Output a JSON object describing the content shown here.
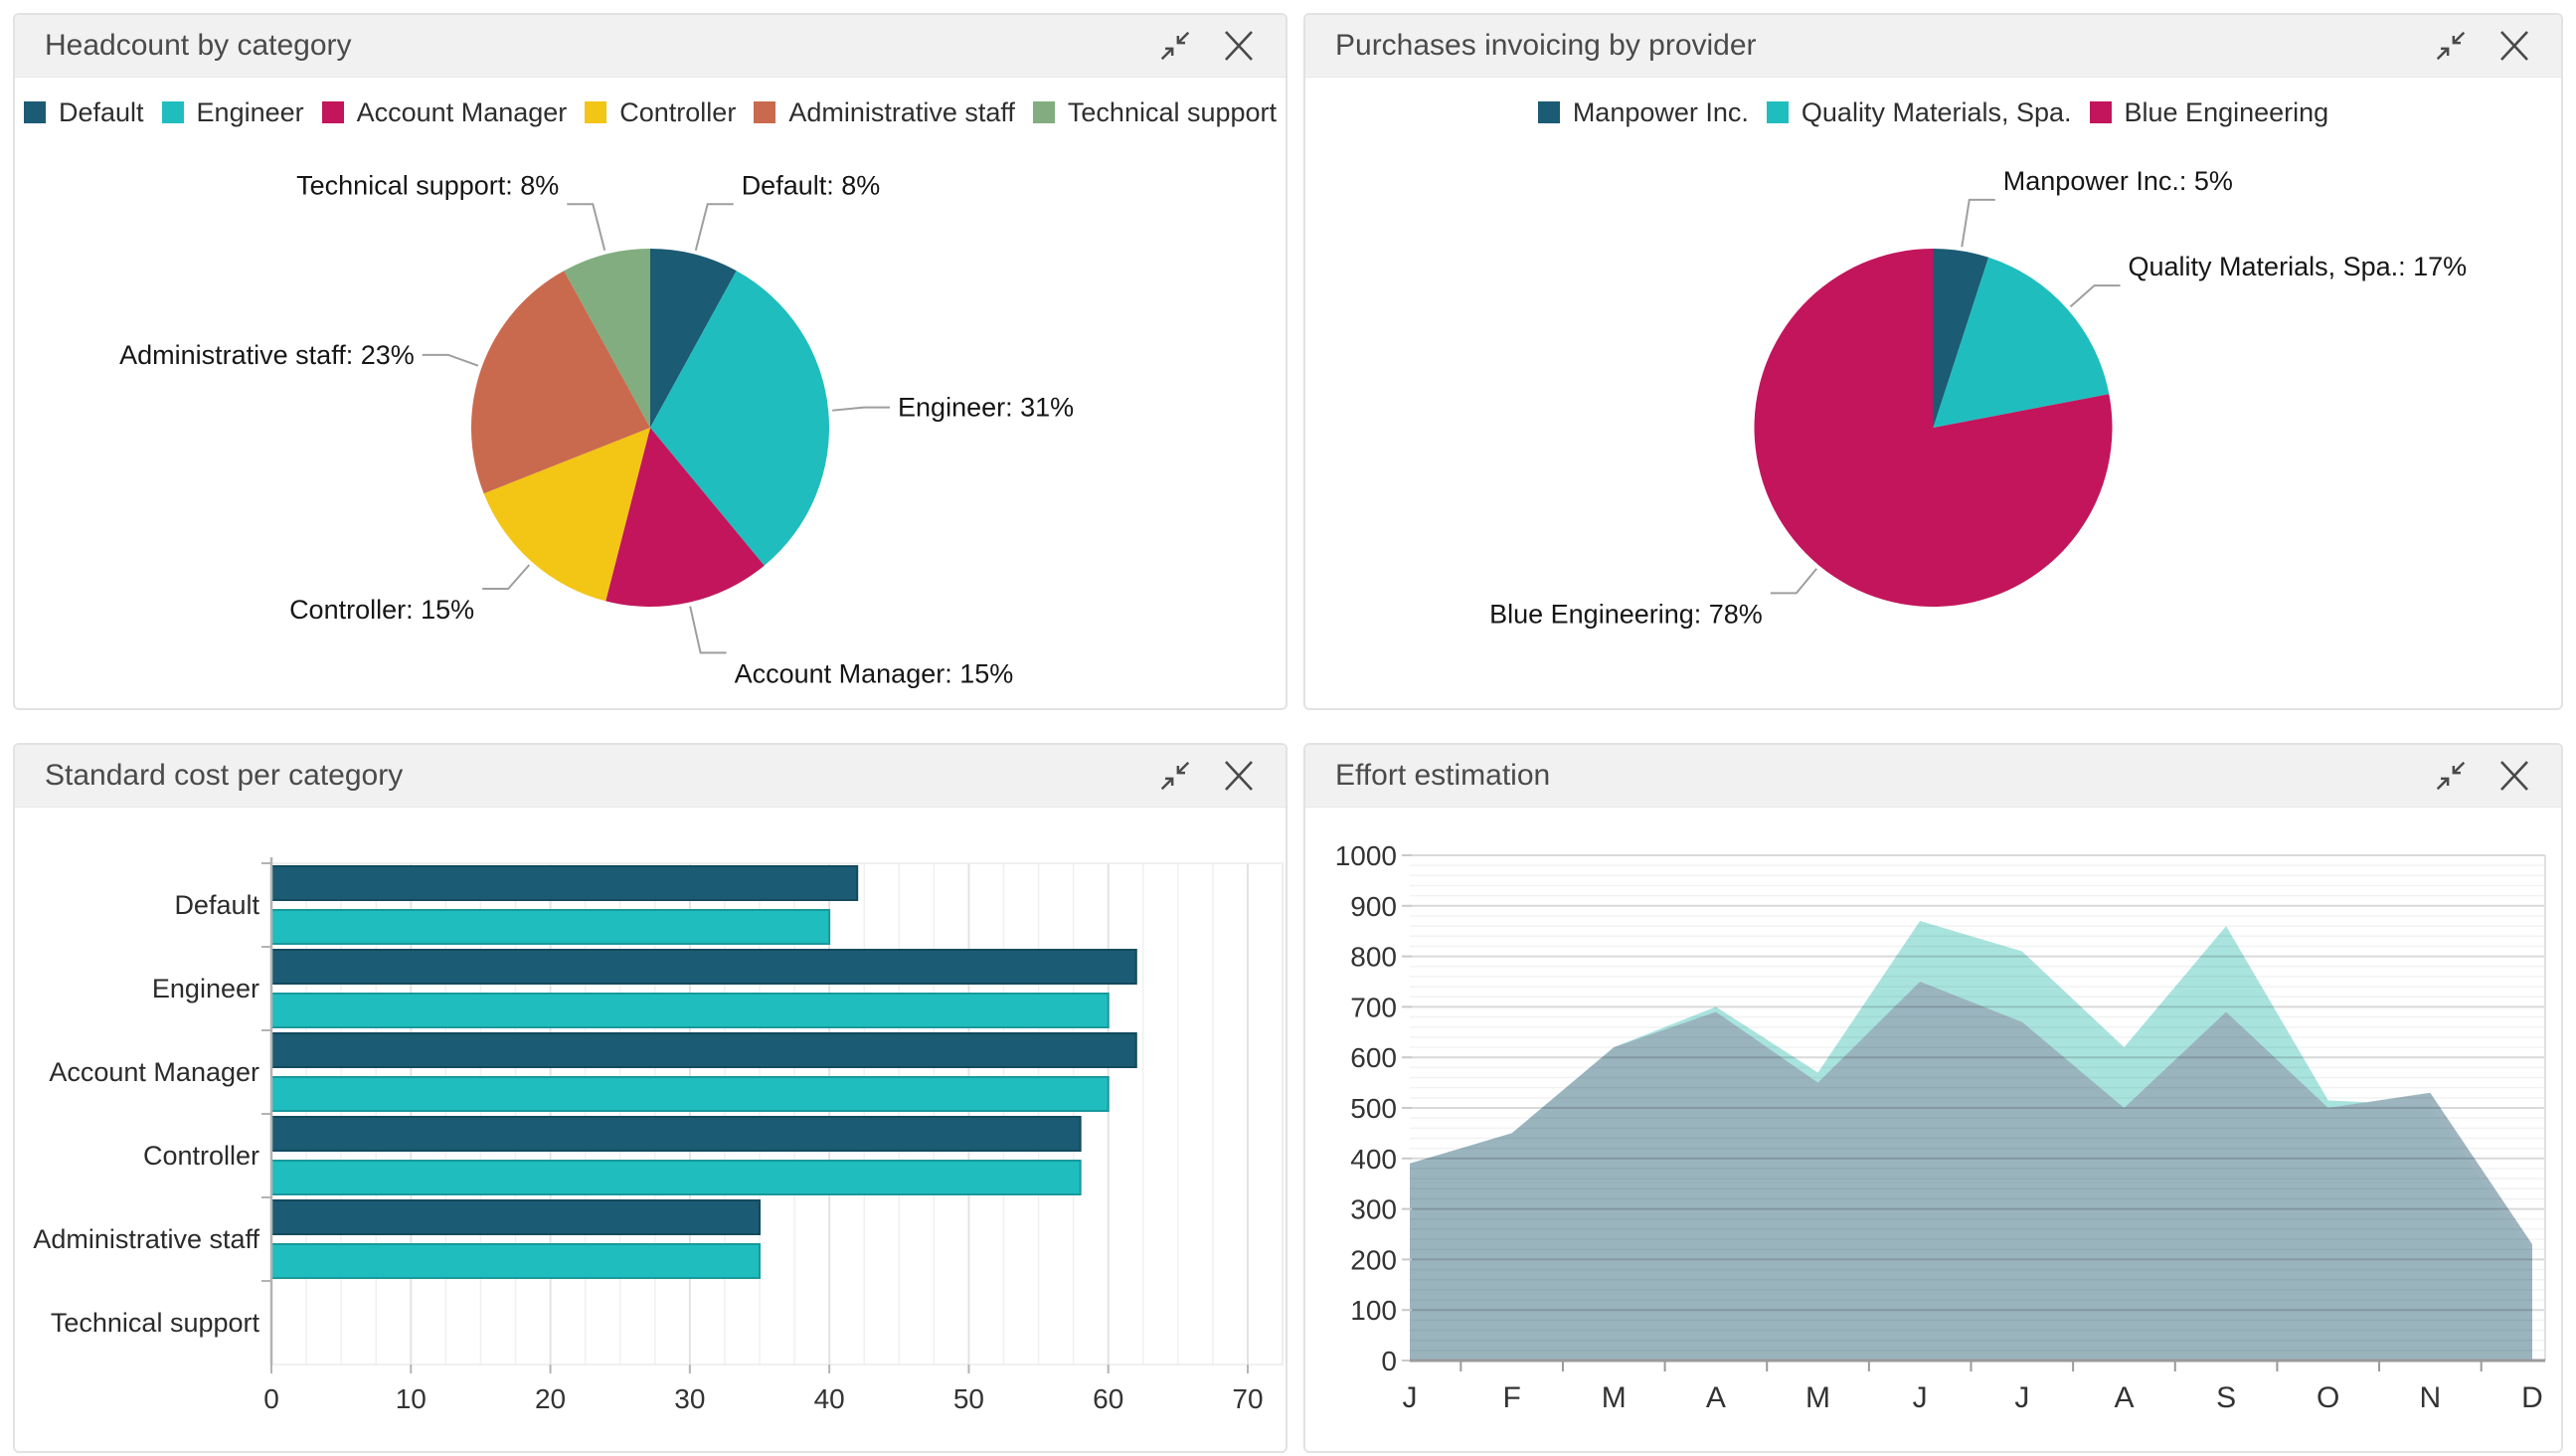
{
  "page": {
    "background": "#ffffff"
  },
  "colors": {
    "dark_teal": "#1b5b73",
    "teal": "#20bdbe",
    "crimson": "#c2155c",
    "yellow": "#f3c515",
    "orange": "#c96a4e",
    "green": "#82ad80",
    "area_teal": "#a9e3de",
    "area_gray": "#99b1bc",
    "header_bg": "#f1f1f1",
    "panel_border": "#e2e2e2",
    "leader_line": "#9e9e9e"
  },
  "panels": [
    {
      "title": "Headcount by category",
      "icons": [
        "collapse-icon",
        "close-icon"
      ]
    },
    {
      "title": "Purchases invoicing by provider",
      "icons": [
        "collapse-icon",
        "close-icon"
      ]
    },
    {
      "title": "Standard cost per category",
      "icons": [
        "collapse-icon",
        "close-icon"
      ]
    },
    {
      "title": "Effort estimation",
      "icons": [
        "collapse-icon",
        "close-icon"
      ]
    }
  ],
  "chart_data": [
    {
      "type": "pie",
      "title": "Headcount by category",
      "legend_position": "top",
      "slices": [
        {
          "label": "Default",
          "value": 8,
          "callout": "Default: 8%",
          "color": "#1b5b73"
        },
        {
          "label": "Engineer",
          "value": 31,
          "callout": "Engineer: 31%",
          "color": "#20bdbe"
        },
        {
          "label": "Account Manager",
          "value": 15,
          "callout": "Account Manager: 15%",
          "color": "#c2155c"
        },
        {
          "label": "Controller",
          "value": 15,
          "callout": "Controller: 15%",
          "color": "#f3c515"
        },
        {
          "label": "Administrative staff",
          "value": 23,
          "callout": "Administrative staff: 23%",
          "color": "#c96a4e"
        },
        {
          "label": "Technical support",
          "value": 8,
          "callout": "Technical support: 8%",
          "color": "#82ad80"
        }
      ]
    },
    {
      "type": "pie",
      "title": "Purchases invoicing by provider",
      "legend_position": "top",
      "slices": [
        {
          "label": "Manpower Inc.",
          "value": 5,
          "callout": "Manpower Inc.: 5%",
          "color": "#1b5b73"
        },
        {
          "label": "Quality Materials, Spa.",
          "value": 17,
          "callout": "Quality Materials, Spa.: 17%",
          "color": "#20bdbe"
        },
        {
          "label": "Blue Engineering",
          "value": 78,
          "callout": "Blue Engineering: 78%",
          "color": "#c2155c"
        }
      ]
    },
    {
      "type": "bar",
      "orientation": "horizontal",
      "title": "Standard cost per category",
      "categories": [
        "Default",
        "Engineer",
        "Account Manager",
        "Controller",
        "Administrative staff",
        "Technical support"
      ],
      "series": [
        {
          "color": "#1b5b73",
          "values": [
            42,
            62,
            62,
            58,
            35,
            0
          ]
        },
        {
          "color": "#20bdbe",
          "values": [
            40,
            60,
            60,
            58,
            35,
            0
          ]
        }
      ],
      "xlim": [
        0,
        70
      ],
      "xticks": [
        0,
        10,
        20,
        30,
        40,
        50,
        60,
        70
      ],
      "grid": "vertical-minor-2.5"
    },
    {
      "type": "area",
      "title": "Effort estimation",
      "x_labels": [
        "J",
        "F",
        "M",
        "A",
        "M",
        "J",
        "J",
        "A",
        "S",
        "O",
        "N",
        "D"
      ],
      "series": [
        {
          "color": "#a9e3de",
          "values": [
            390,
            450,
            620,
            700,
            570,
            870,
            810,
            620,
            860,
            515,
            505,
            210
          ]
        },
        {
          "color": "#99b1bc",
          "opacity": 0.95,
          "values": [
            390,
            450,
            620,
            690,
            550,
            750,
            670,
            500,
            690,
            500,
            530,
            230
          ]
        }
      ],
      "ylim": [
        0,
        1000
      ],
      "yticks": [
        0,
        100,
        200,
        300,
        400,
        500,
        600,
        700,
        800,
        900,
        1000
      ],
      "grid": "horizontal-major-100-minor-20",
      "legend_position": "none"
    }
  ]
}
